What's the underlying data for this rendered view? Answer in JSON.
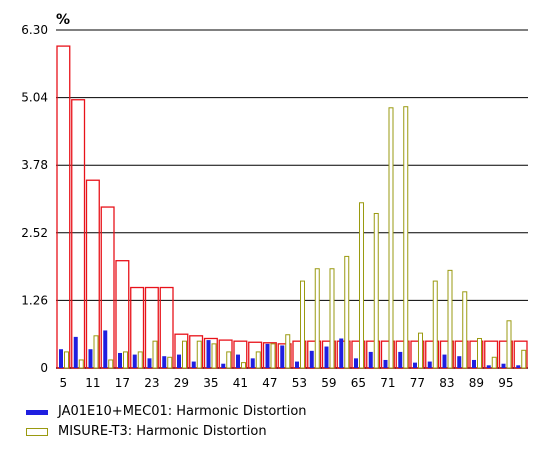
{
  "colors": {
    "limit": "#e8121a",
    "series1": "#1f1fe0",
    "series2": "#9a9a10",
    "grid": "#000000"
  },
  "chart_data": {
    "type": "bar",
    "title": "",
    "xlabel": "",
    "ylabel": "%",
    "ylim": [
      0,
      6.3
    ],
    "yticks": [
      0,
      1.26,
      2.52,
      3.78,
      5.04,
      6.3
    ],
    "ytick_labels": [
      "0",
      "1.26",
      "2.52",
      "3.78",
      "5.04",
      "6.30"
    ],
    "grid": "horizontal",
    "legend_position": "bottom",
    "x_tick_labels": [
      "5",
      "11",
      "17",
      "23",
      "29",
      "35",
      "41",
      "47",
      "53",
      "59",
      "65",
      "71",
      "77",
      "83",
      "89",
      "95"
    ],
    "categories": [
      5,
      7,
      11,
      13,
      17,
      19,
      23,
      25,
      29,
      31,
      35,
      37,
      41,
      43,
      47,
      49,
      53,
      55,
      59,
      61,
      65,
      67,
      71,
      73,
      77,
      79,
      83,
      85,
      89,
      91,
      95,
      97
    ],
    "limits": [
      6.0,
      5.0,
      3.5,
      3.0,
      2.0,
      1.5,
      1.5,
      1.5,
      0.63,
      0.6,
      0.55,
      0.52,
      0.5,
      0.48,
      0.47,
      0.45,
      0.5,
      0.5,
      0.5,
      0.5,
      0.5,
      0.5,
      0.5,
      0.5,
      0.5,
      0.5,
      0.5,
      0.5,
      0.5,
      0.5,
      0.5,
      0.5
    ],
    "series": [
      {
        "name": "JA01E10+MEC01: Harmonic Distortion",
        "values": [
          0.35,
          0.58,
          0.35,
          0.7,
          0.28,
          0.25,
          0.18,
          0.22,
          0.25,
          0.12,
          0.52,
          0.08,
          0.25,
          0.18,
          0.45,
          0.42,
          0.12,
          0.32,
          0.4,
          0.55,
          0.18,
          0.3,
          0.15,
          0.3,
          0.1,
          0.12,
          0.25,
          0.22,
          0.15,
          0.05,
          0.08,
          0.05
        ]
      },
      {
        "name": "MISURE-T3: Harmonic Distortion",
        "values": [
          0.3,
          0.15,
          0.6,
          0.15,
          0.3,
          0.3,
          0.5,
          0.2,
          0.5,
          0.5,
          0.45,
          0.3,
          0.1,
          0.3,
          0.45,
          0.62,
          1.62,
          1.85,
          1.85,
          2.08,
          3.08,
          2.88,
          4.85,
          4.87,
          0.65,
          1.62,
          1.82,
          1.42,
          0.55,
          0.2,
          0.88,
          0.33
        ]
      }
    ]
  }
}
